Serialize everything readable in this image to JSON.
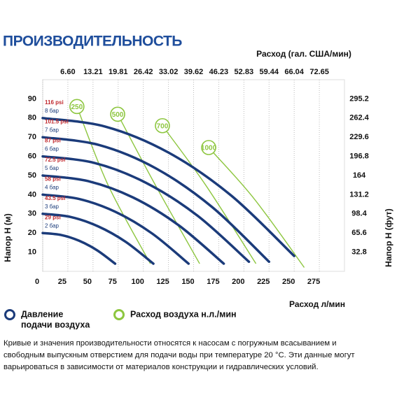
{
  "chart_data": {
    "type": "line",
    "title": "ПРОИЗВОДИТЕЛЬНОСТЬ",
    "x2_label": "Расход (гал. США/мин)",
    "x_label": "Расход л/мин",
    "y_label": "Напор Н (м)",
    "y2_label": "Напор Н (фут)",
    "xlim": [
      0,
      300
    ],
    "xticks": [
      0,
      25,
      50,
      75,
      100,
      125,
      150,
      175,
      200,
      225,
      250,
      275
    ],
    "x2lim": [
      0,
      79.25
    ],
    "x2ticks": [
      {
        "value": 6.6,
        "label": "6.60"
      },
      13.21,
      19.81,
      26.42,
      33.02,
      39.62,
      46.23,
      52.83,
      59.44,
      66.04,
      72.65
    ],
    "ylim": [
      0,
      100
    ],
    "yticks": [
      10,
      20,
      30,
      40,
      50,
      60,
      70,
      80,
      90
    ],
    "y2lim": [
      0,
      328
    ],
    "y2ticks": [
      32.8,
      65.6,
      98.4,
      131.2,
      164,
      196.8,
      229.6,
      262.4,
      295.2
    ],
    "grid": true,
    "pressure_color": "#1b3b7a",
    "psi_color": "#c0282d",
    "air_color": "#8dc63f",
    "pressure_series": [
      {
        "name": "8 бар",
        "psi": "116 psi",
        "x": [
          0,
          62.5,
          125,
          187.5,
          250
        ],
        "values": [
          80,
          75.5,
          62,
          39.5,
          8
        ]
      },
      {
        "name": "7 бар",
        "psi": "101.5 psi",
        "x": [
          0,
          56.25,
          112.5,
          168.75,
          225
        ],
        "values": [
          70,
          65.9,
          53.75,
          33.4,
          5
        ]
      },
      {
        "name": "6 бар",
        "psi": "87 psi",
        "x": [
          0,
          51.25,
          102.5,
          153.75,
          205
        ],
        "values": [
          60,
          56.6,
          46.25,
          29.1,
          5
        ]
      },
      {
        "name": "5 бар",
        "psi": "72.5 psi",
        "x": [
          0,
          45,
          90,
          135,
          180
        ],
        "values": [
          50,
          47.1,
          38.5,
          24.1,
          4
        ]
      },
      {
        "name": "4 бар",
        "psi": "58 psi",
        "x": [
          0,
          36.25,
          72.5,
          108.75,
          145
        ],
        "values": [
          40,
          37.75,
          31,
          19.75,
          4
        ]
      },
      {
        "name": "3 бар",
        "psi": "43.5 psi",
        "x": [
          0,
          27.5,
          55,
          82.5,
          110
        ],
        "values": [
          30,
          28.4,
          23.5,
          15.4,
          4
        ]
      },
      {
        "name": "2 бар",
        "psi": "29 psi",
        "x": [
          0,
          18,
          36,
          54,
          72
        ],
        "values": [
          20,
          19,
          16,
          11,
          4
        ]
      }
    ],
    "air_series": [
      {
        "name": "250",
        "x": [
          34,
          65,
          107
        ],
        "values": [
          86,
          45,
          4
        ]
      },
      {
        "name": "500",
        "x": [
          74.5,
          112,
          156
        ],
        "values": [
          82,
          45,
          4
        ]
      },
      {
        "name": "700",
        "x": [
          119,
          162,
          212
        ],
        "values": [
          76,
          45,
          4
        ]
      },
      {
        "name": "1000",
        "x": [
          165,
          210,
          260
        ],
        "values": [
          64.6,
          38,
          2
        ]
      }
    ],
    "legend": [
      {
        "lines": [
          "Давление",
          "подачи воздуха"
        ],
        "kind": "pressure"
      },
      {
        "lines": [
          "Расход воздуха н.л./мин"
        ],
        "kind": "air"
      }
    ],
    "footnote": [
      "Кривые и значения производительности относятся к насосам с погружным всасыванием и",
      "свободным выпускным отверстием для подачи воды при температуре 20 °C. Эти данные могут",
      "варьироваться в зависимости от материалов конструкции и гидравлических условий."
    ]
  }
}
